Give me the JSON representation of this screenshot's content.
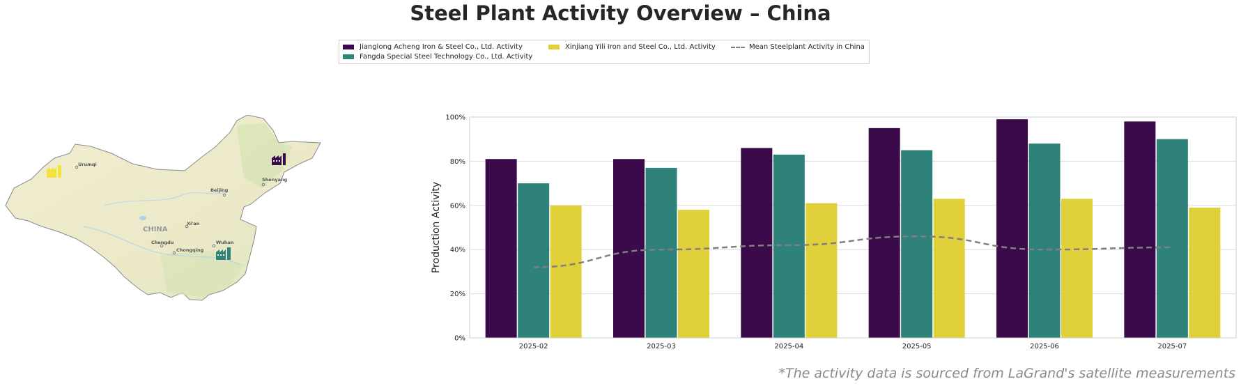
{
  "title": "Steel Plant Activity Overview – China",
  "footnote": "*The activity data is sourced from LaGrand's satellite measurements",
  "legend": {
    "series_1": "Jianglong Acheng Iron & Steel Co., Ltd. Activity",
    "series_2": "Fangda Special Steel Technology Co., Ltd. Activity",
    "series_3": "Xinjiang Yili Iron and Steel Co., Ltd. Activity",
    "mean": "Mean Steelplant Activity in China"
  },
  "map": {
    "country_label": "CHINA",
    "cities": [
      "Urumqi",
      "Beijing",
      "Shenyang",
      "Xi'an",
      "Chengdu",
      "Chongqing",
      "Wuhan"
    ],
    "markers": [
      {
        "plant": "Jianglong Acheng Iron & Steel Co., Ltd.",
        "color": "#3b0a4a",
        "icon": "factory-icon"
      },
      {
        "plant": "Fangda Special Steel Technology Co., Ltd.",
        "color": "#2e8279",
        "icon": "factory-icon"
      },
      {
        "plant": "Xinjiang Yili Iron and Steel Co., Ltd.",
        "color": "#e8d83a",
        "icon": "factory-icon"
      }
    ]
  },
  "chart_data": {
    "type": "bar",
    "title": "",
    "xlabel": "",
    "ylabel": "Production Activity",
    "categories": [
      "2025-02",
      "2025-03",
      "2025-04",
      "2025-05",
      "2025-06",
      "2025-07"
    ],
    "ylim": [
      0,
      100
    ],
    "yticks": [
      "0%",
      "20%",
      "40%",
      "60%",
      "80%",
      "100%"
    ],
    "grid": "horizontal",
    "legend_position": "top-center",
    "series": [
      {
        "name": "Jianglong Acheng Iron & Steel Co., Ltd. Activity",
        "color": "#3b0a4a",
        "values": [
          81,
          81,
          86,
          95,
          99,
          98
        ]
      },
      {
        "name": "Fangda Special Steel Technology Co., Ltd. Activity",
        "color": "#2e8279",
        "values": [
          70,
          77,
          83,
          85,
          88,
          90
        ]
      },
      {
        "name": "Xinjiang Yili Iron and Steel Co., Ltd. Activity",
        "color": "#e0d03a",
        "values": [
          60,
          58,
          61,
          63,
          63,
          59
        ]
      }
    ],
    "mean_line": {
      "name": "Mean Steelplant Activity in China",
      "color": "#7f7f7f",
      "style": "dashed",
      "values": [
        32,
        40,
        42,
        46,
        40,
        41
      ]
    }
  }
}
